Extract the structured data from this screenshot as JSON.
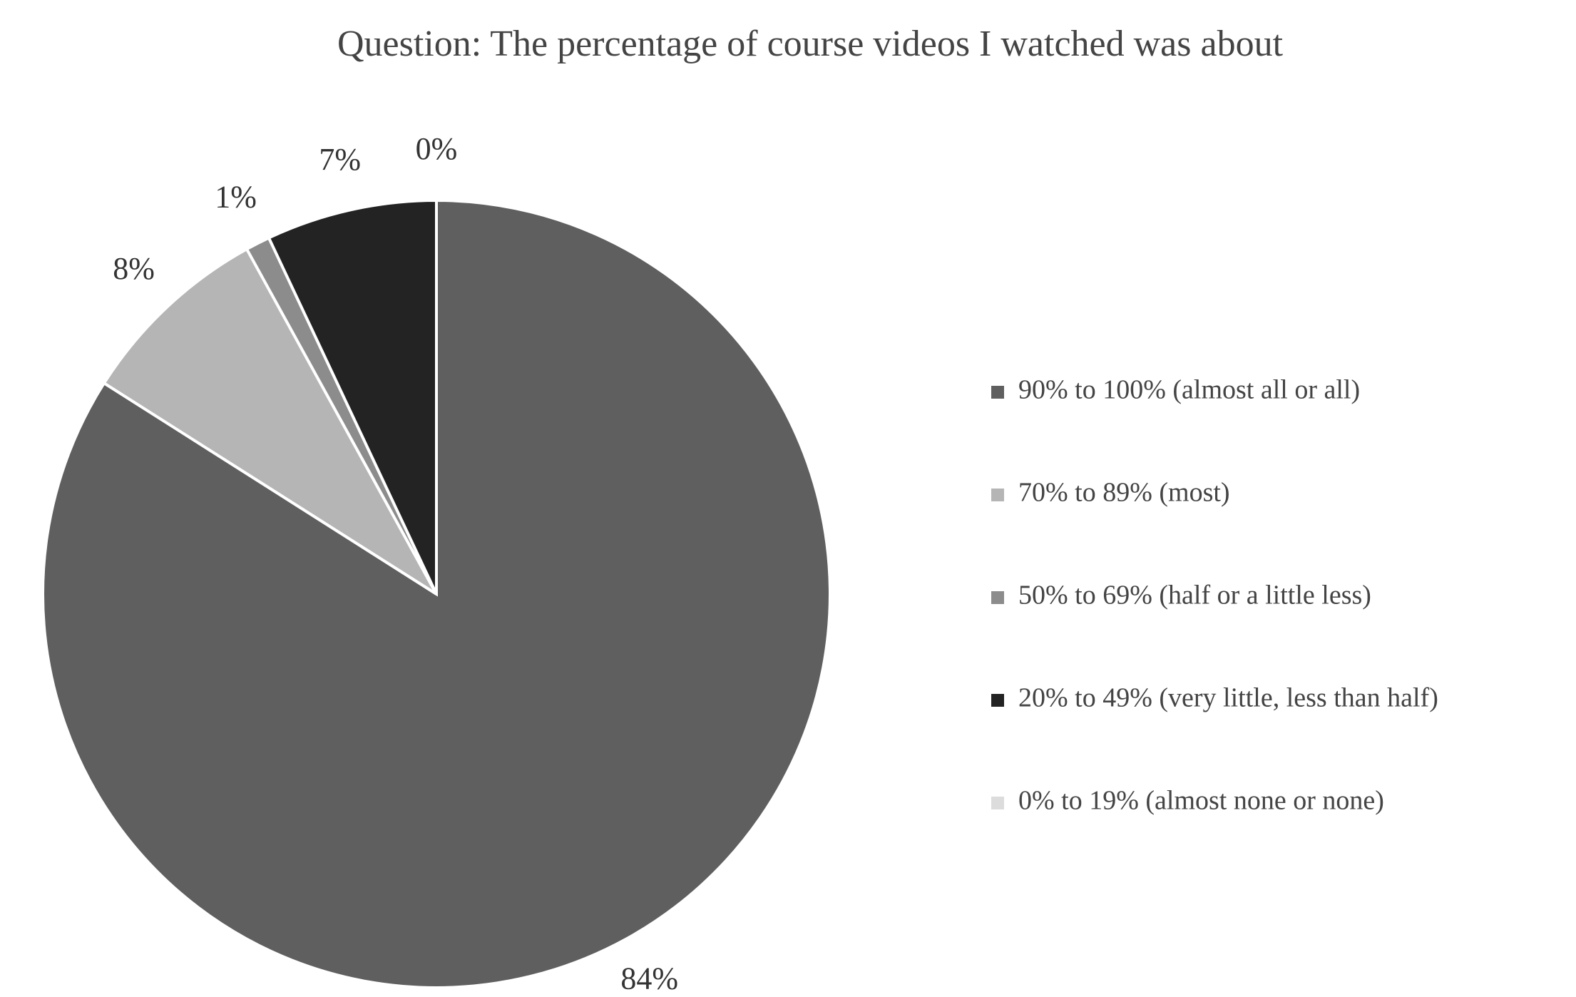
{
  "chart_data": {
    "type": "pie",
    "title": "Question: The percentage of course videos I watched was about",
    "categories": [
      "90% to 100% (almost all or all)",
      "70% to 89% (most)",
      "50% to 69% (half or a little less)",
      "20% to 49% (very little, less than half)",
      "0% to 19% (almost none or none)"
    ],
    "values": [
      84,
      8,
      1,
      7,
      0
    ],
    "value_labels": [
      "84%",
      "8%",
      "1%",
      "7%",
      "0%"
    ],
    "colors": [
      "#5f5f5f",
      "#b5b5b5",
      "#8c8c8c",
      "#232323",
      "#dcdcdc"
    ],
    "legend": "right"
  }
}
